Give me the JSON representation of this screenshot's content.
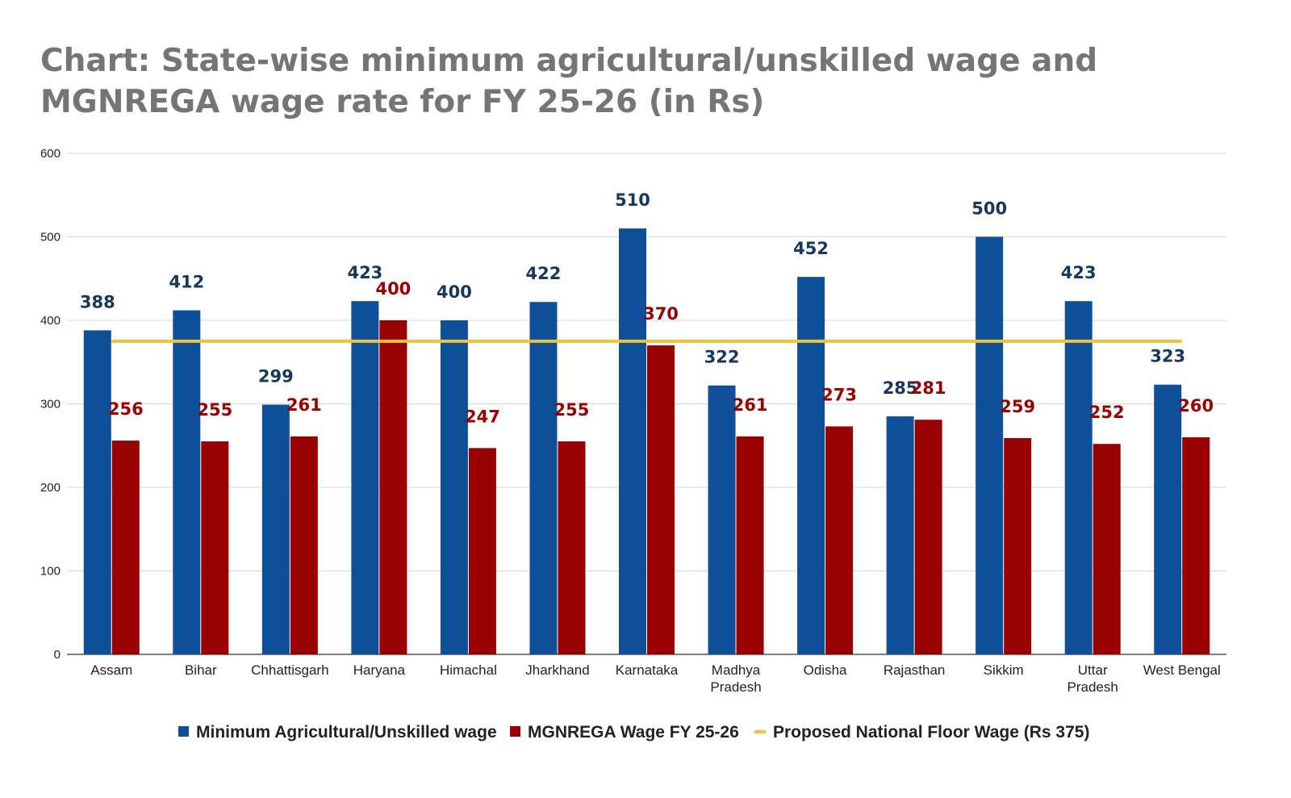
{
  "chart_data": {
    "type": "bar",
    "title_lines": [
      "Chart: State-wise minimum agricultural/unskilled wage and",
      "MGNREGA wage rate for FY 25-26 (in Rs)"
    ],
    "categories": [
      [
        "Assam"
      ],
      [
        "Bihar"
      ],
      [
        "Chhattisgarh"
      ],
      [
        "Haryana"
      ],
      [
        "Himachal"
      ],
      [
        "Jharkhand"
      ],
      [
        "Karnataka"
      ],
      [
        "Madhya",
        "Pradesh"
      ],
      [
        "Odisha"
      ],
      [
        "Rajasthan"
      ],
      [
        "Sikkim"
      ],
      [
        "Uttar",
        "Pradesh"
      ],
      [
        "West Bengal"
      ]
    ],
    "series": [
      {
        "name": "Minimum Agricultural/Unskilled wage",
        "color": "#0d4f98",
        "label_color": "#17375e",
        "values": [
          388,
          412,
          299,
          423,
          400,
          422,
          510,
          322,
          452,
          285,
          500,
          423,
          323
        ]
      },
      {
        "name": "MGNREGA Wage FY 25-26",
        "color": "#990000",
        "label_color": "#990000",
        "values": [
          256,
          255,
          261,
          400,
          247,
          255,
          370,
          261,
          273,
          281,
          259,
          252,
          260
        ]
      }
    ],
    "reference_line": {
      "name": "Proposed National Floor Wage (Rs 375)",
      "value": 375,
      "color": "#f1c232"
    },
    "yticks": [
      0,
      100,
      200,
      300,
      400,
      500,
      600
    ],
    "ylim": [
      0,
      600
    ],
    "grid": true,
    "legend_position": "bottom"
  }
}
